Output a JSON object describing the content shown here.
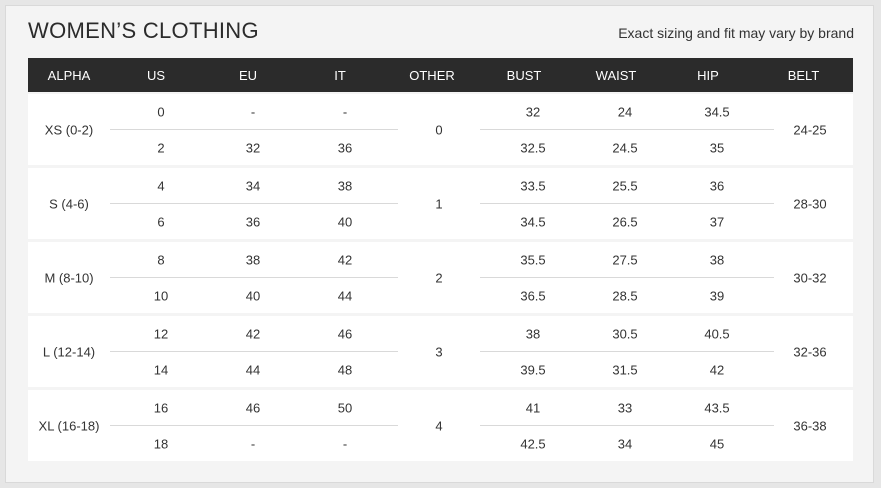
{
  "title": "WOMEN’S CLOTHING",
  "note": "Exact sizing and fit may vary by brand",
  "headers": [
    "ALPHA",
    "US",
    "EU",
    "IT",
    "OTHER",
    "BUST",
    "WAIST",
    "HIP",
    "BELT"
  ],
  "rows": [
    {
      "alpha": "XS (0-2)",
      "other": "0",
      "belt": "24-25",
      "a": {
        "us": "0",
        "eu": "-",
        "it": "-",
        "bust": "32",
        "waist": "24",
        "hip": "34.5"
      },
      "b": {
        "us": "2",
        "eu": "32",
        "it": "36",
        "bust": "32.5",
        "waist": "24.5",
        "hip": "35"
      }
    },
    {
      "alpha": "S (4-6)",
      "other": "1",
      "belt": "28-30",
      "a": {
        "us": "4",
        "eu": "34",
        "it": "38",
        "bust": "33.5",
        "waist": "25.5",
        "hip": "36"
      },
      "b": {
        "us": "6",
        "eu": "36",
        "it": "40",
        "bust": "34.5",
        "waist": "26.5",
        "hip": "37"
      }
    },
    {
      "alpha": "M (8-10)",
      "other": "2",
      "belt": "30-32",
      "a": {
        "us": "8",
        "eu": "38",
        "it": "42",
        "bust": "35.5",
        "waist": "27.5",
        "hip": "38"
      },
      "b": {
        "us": "10",
        "eu": "40",
        "it": "44",
        "bust": "36.5",
        "waist": "28.5",
        "hip": "39"
      }
    },
    {
      "alpha": "L (12-14)",
      "other": "3",
      "belt": "32-36",
      "a": {
        "us": "12",
        "eu": "42",
        "it": "46",
        "bust": "38",
        "waist": "30.5",
        "hip": "40.5"
      },
      "b": {
        "us": "14",
        "eu": "44",
        "it": "48",
        "bust": "39.5",
        "waist": "31.5",
        "hip": "42"
      }
    },
    {
      "alpha": "XL (16-18)",
      "other": "4",
      "belt": "36-38",
      "a": {
        "us": "16",
        "eu": "46",
        "it": "50",
        "bust": "41",
        "waist": "33",
        "hip": "43.5"
      },
      "b": {
        "us": "18",
        "eu": "-",
        "it": "-",
        "bust": "42.5",
        "waist": "34",
        "hip": "45"
      }
    }
  ]
}
